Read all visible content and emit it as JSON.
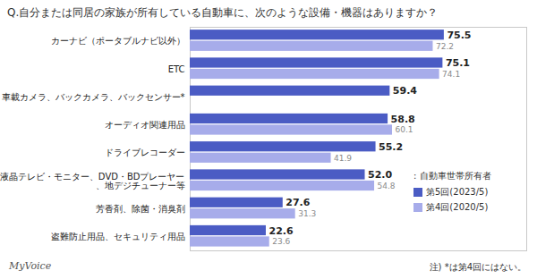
{
  "chart_data": {
    "type": "bar",
    "title": "Q.自分または同居の家族が所有している自動車に、次のような設備・機器はありますか？",
    "orientation": "horizontal",
    "categories": [
      "カーナビ（ポータブルナビ以外）",
      "ETC",
      "車載カメラ、バックカメラ、バックセンサー*",
      "オーディオ関連用品",
      "ドライブレコーダー",
      "液晶テレビ・モニター、DVD・BDプレーヤー\n、地デジチューナー等",
      "芳香剤、除菌・消臭剤",
      "盗難防止用品、セキュリティ用品"
    ],
    "series": [
      {
        "name": "第5回(2023/5)",
        "color": "#4b5cc4",
        "values": [
          75.5,
          75.1,
          59.4,
          58.8,
          55.2,
          52.0,
          27.6,
          22.6
        ],
        "value_labels": [
          "75.5",
          "75.1",
          "59.4",
          "58.8",
          "55.2",
          "52.0",
          "27.6",
          "22.6"
        ]
      },
      {
        "name": "第4回(2020/5)",
        "color": "#a7acea",
        "values": [
          72.2,
          74.1,
          null,
          60.1,
          41.9,
          54.8,
          31.3,
          23.6
        ],
        "value_labels": [
          "72.2",
          "74.1",
          null,
          "60.1",
          "41.9",
          "54.8",
          "31.3",
          "23.6"
        ]
      }
    ],
    "xlim": [
      0,
      100
    ],
    "data_labels": true,
    "tick_labels": "y",
    "legend": "lower right",
    "legend_title": ": 自動車世帯所有者",
    "source": "MyVoice",
    "footnote": "注) *は第4回にはない。"
  }
}
